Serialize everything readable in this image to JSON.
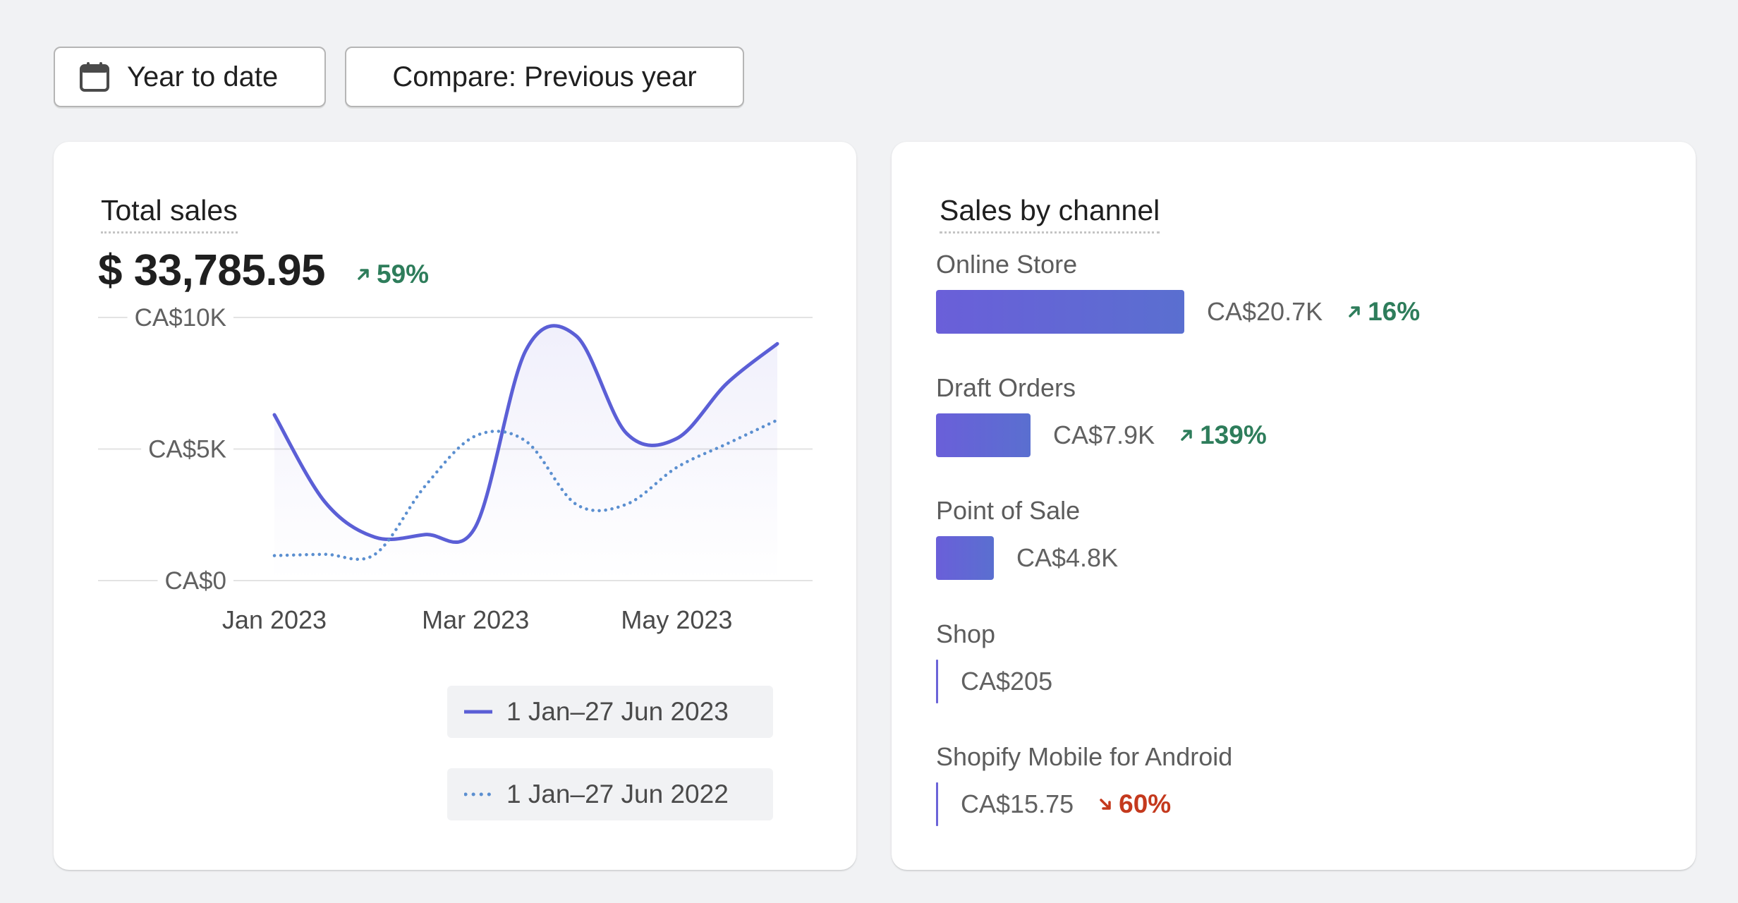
{
  "toolbar": {
    "date_range_label": "Year to date",
    "compare_label": "Compare: Previous year"
  },
  "total_sales": {
    "title": "Total sales",
    "value": "$ 33,785.95",
    "change": "59%",
    "change_direction": "up",
    "legend": [
      {
        "label": "1 Jan–27 Jun 2023",
        "style": "solid",
        "color": "#5b5fd6"
      },
      {
        "label": "1 Jan–27 Jun 2022",
        "style": "dotted",
        "color": "#5b8fd0"
      }
    ]
  },
  "chart_data": {
    "type": "line",
    "y_tick_labels": [
      "CA$10K",
      "CA$5K",
      "CA$0"
    ],
    "x_tick_labels": [
      "Jan 2023",
      "Mar 2023",
      "May 2023"
    ],
    "ylim": [
      0,
      10000
    ],
    "grid": true,
    "legend_position": "bottom-right",
    "x": [
      0,
      0.5,
      1,
      1.5,
      2,
      2.5,
      3,
      3.5,
      4,
      4.5,
      5
    ],
    "series": [
      {
        "name": "1 Jan–27 Jun 2023",
        "style": "solid",
        "color": "#5b5fd6",
        "values": [
          6300,
          3000,
          1650,
          1750,
          2050,
          8750,
          9300,
          5600,
          5400,
          7500,
          9000
        ]
      },
      {
        "name": "1 Jan–27 Jun 2022",
        "style": "dotted",
        "color": "#5b8fd0",
        "values": [
          950,
          1000,
          1000,
          3600,
          5500,
          5300,
          2900,
          2900,
          4300,
          5200,
          6100
        ]
      }
    ]
  },
  "sales_by_channel": {
    "title": "Sales by channel",
    "channels": [
      {
        "name": "Online Store",
        "value": "CA$20.7K",
        "amount": 20700,
        "change": "16%",
        "change_direction": "up"
      },
      {
        "name": "Draft Orders",
        "value": "CA$7.9K",
        "amount": 7900,
        "change": "139%",
        "change_direction": "up"
      },
      {
        "name": "Point of Sale",
        "value": "CA$4.8K",
        "amount": 4800,
        "change": "",
        "change_direction": ""
      },
      {
        "name": "Shop",
        "value": "CA$205",
        "amount": 205,
        "change": "",
        "change_direction": ""
      },
      {
        "name": "Shopify Mobile for Android",
        "value": "CA$15.75",
        "amount": 15.75,
        "change": "60%",
        "change_direction": "down"
      }
    ]
  }
}
